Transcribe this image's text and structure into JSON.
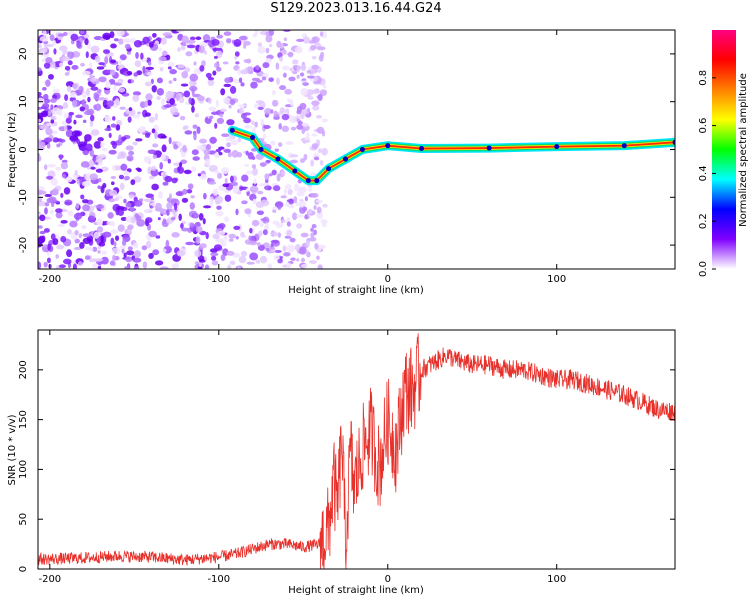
{
  "title": "S129.2023.013.16.44.G24",
  "chart_data": [
    {
      "type": "heatmap",
      "xlabel": "Height of straight line (km)",
      "ylabel": "Frequency (Hz)",
      "xlim": [
        -207,
        170
      ],
      "ylim": [
        -25,
        25
      ],
      "xticks": [
        -200,
        -100,
        0,
        100
      ],
      "yticks": [
        -20,
        -10,
        0,
        10,
        20
      ],
      "colorbar": {
        "label": "Normalized spectral amplitude",
        "range": [
          0,
          1
        ],
        "ticks": [
          0.0,
          0.2,
          0.4,
          0.6,
          0.8
        ],
        "colors": [
          "#ffffff",
          "#8000ff",
          "#0000ff",
          "#00ffff",
          "#00ff00",
          "#ffff00",
          "#ff8000",
          "#ff0000",
          "#ff0080"
        ]
      },
      "ridge": [
        {
          "x": -92,
          "y": 4
        },
        {
          "x": -80,
          "y": 2.5
        },
        {
          "x": -75,
          "y": 0
        },
        {
          "x": -65,
          "y": -2
        },
        {
          "x": -55,
          "y": -4.5
        },
        {
          "x": -47,
          "y": -6.5
        },
        {
          "x": -42,
          "y": -6.5
        },
        {
          "x": -35,
          "y": -4
        },
        {
          "x": -25,
          "y": -2
        },
        {
          "x": -15,
          "y": 0
        },
        {
          "x": 0,
          "y": 0.8
        },
        {
          "x": 20,
          "y": 0.2
        },
        {
          "x": 60,
          "y": 0.3
        },
        {
          "x": 100,
          "y": 0.6
        },
        {
          "x": 140,
          "y": 0.8
        },
        {
          "x": 170,
          "y": 1.5
        }
      ]
    },
    {
      "type": "line",
      "xlabel": "Height of straight line (km)",
      "ylabel": "SNR (10 * v/v)",
      "xlim": [
        -207,
        170
      ],
      "ylim": [
        0,
        240
      ],
      "xticks": [
        -200,
        -100,
        0,
        100
      ],
      "yticks": [
        0,
        50,
        100,
        150,
        200
      ],
      "color": "#e8302a",
      "series": [
        {
          "x": [
            -207,
            -200,
            -180,
            -160,
            -140,
            -120,
            -100,
            -90,
            -80,
            -70,
            -60,
            -50,
            -40,
            -35,
            -32,
            -30,
            -27,
            -25,
            -22,
            -20,
            -15,
            -10,
            -5,
            0,
            5,
            10,
            15,
            20,
            25,
            30,
            35,
            40,
            50,
            60,
            70,
            80,
            90,
            100,
            110,
            120,
            130,
            140,
            150,
            160,
            170
          ],
          "values": [
            10,
            10,
            11,
            13,
            12,
            9,
            12,
            15,
            20,
            25,
            25,
            22,
            25,
            40,
            90,
            60,
            130,
            20,
            120,
            80,
            120,
            140,
            100,
            150,
            120,
            180,
            180,
            200,
            205,
            210,
            215,
            210,
            205,
            205,
            200,
            200,
            195,
            190,
            190,
            185,
            180,
            175,
            168,
            160,
            158
          ]
        }
      ]
    }
  ]
}
